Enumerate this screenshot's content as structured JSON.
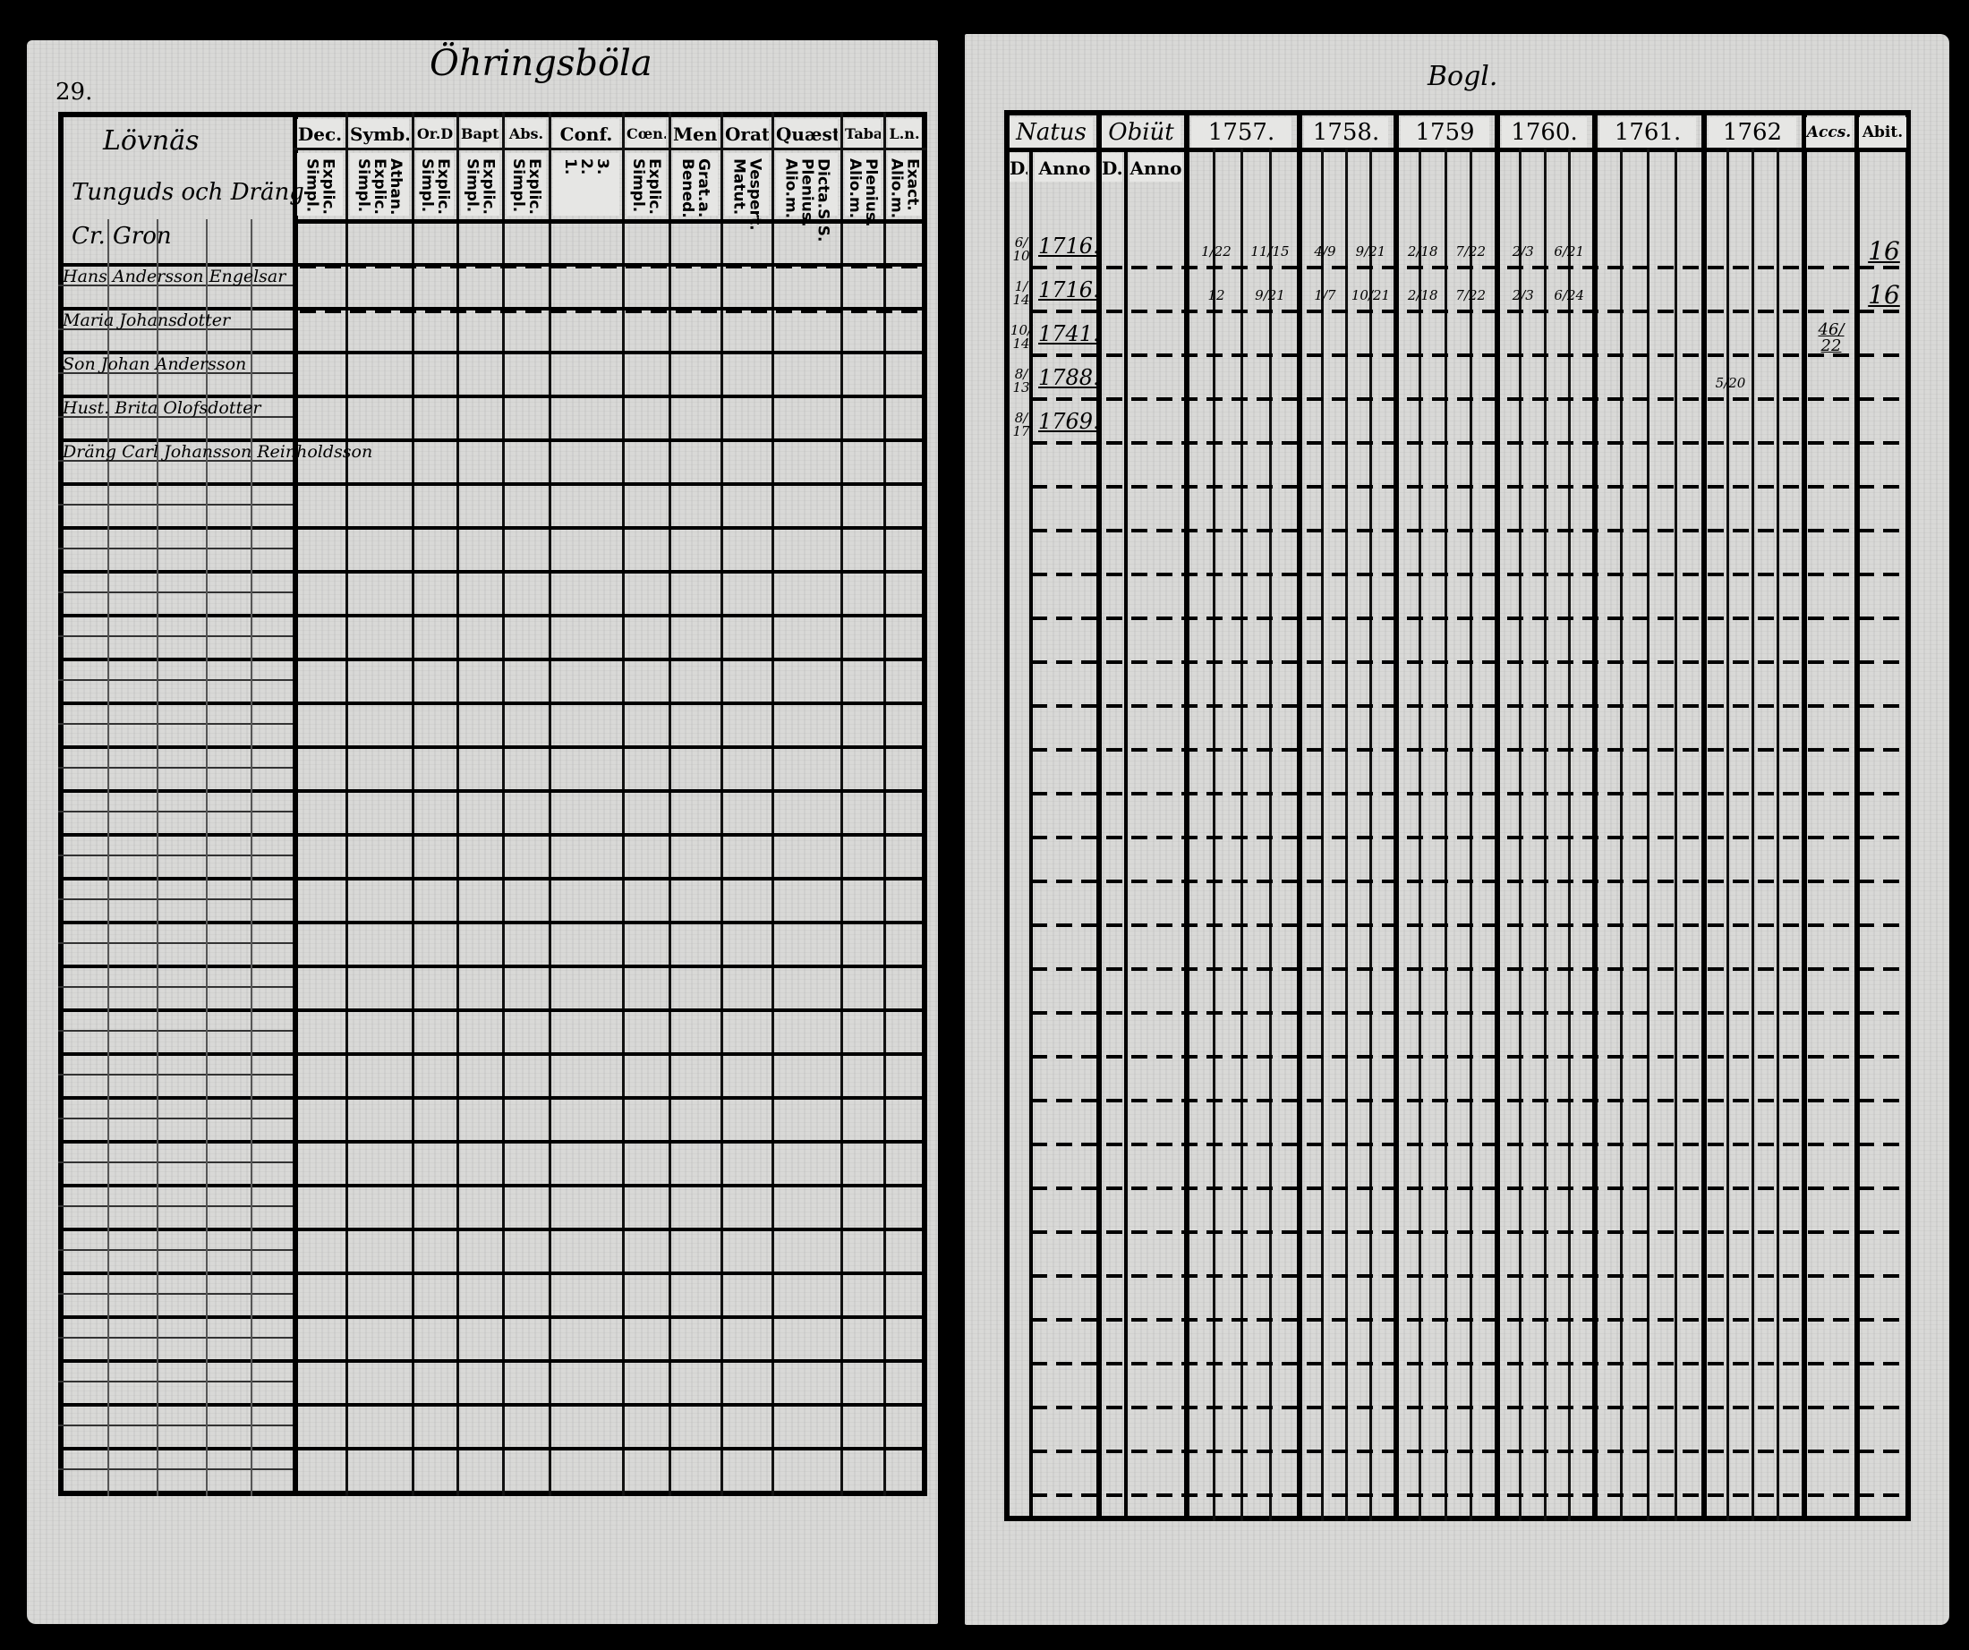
{
  "left_page": {
    "page_number": "29.",
    "title": "Öhringsböla",
    "name_column_heading": "Lövnäs",
    "name_entries": [
      "Tunguds och Dräng",
      "Cr. Gron",
      "Hans Andersson Engelsar",
      "Maria Johansdotter",
      "Son Johan Andersson",
      "Hust. Brita Olofsdotter",
      "Dräng Carl Johansson Reinholdsson"
    ],
    "columns": [
      {
        "top": "Dec.",
        "sub": "Explic.\nSimpl."
      },
      {
        "top": "Symb.",
        "sub": "Athan.\nExplic.\nSimpl."
      },
      {
        "top": "Or.D",
        "sub": "Explic.\nSimpl."
      },
      {
        "top": "Bapt.",
        "sub": "Explic.\nSimpl."
      },
      {
        "top": "Abs.",
        "sub": "Explic.\nSimpl."
      },
      {
        "top": "Conf.",
        "sub": "3.\n2.\n1."
      },
      {
        "top": "Cœn.D",
        "sub": "Explic.\nSimpl."
      },
      {
        "top": "Mens.",
        "sub": "Grat.a.\nBened."
      },
      {
        "top": "Orat.",
        "sub": "Vespert.\nMatut."
      },
      {
        "top": "Quæst.",
        "sub": "Dicta.S.S.\nPlenius.\nAlio.m."
      },
      {
        "top": "Taba",
        "sub": "Plenius.\nAlio.m."
      },
      {
        "top": "L.n.",
        "sub": "Exact.\nAlio.m."
      }
    ]
  },
  "right_page": {
    "title": "Bogl.",
    "columns": {
      "natus": "Natus",
      "obiit": "Obiüt",
      "natus_sub": [
        "D.",
        "Anno"
      ],
      "obiit_sub": [
        "D.",
        "Anno"
      ],
      "years": [
        "1757.",
        "1758.",
        "1759",
        "1760.",
        "1761.",
        "1762"
      ],
      "accessit": "Accs.",
      "abiit": "Abit."
    },
    "rows": [
      {
        "day": "6/10",
        "anno": "1716.",
        "years": [
          [
            "1/22",
            "11/15"
          ],
          [
            "4/9",
            "9/21"
          ],
          [
            "2/18",
            "7/22"
          ],
          [
            "2/3",
            "6/21"
          ],
          [],
          []
        ],
        "accessit": "",
        "abiit": "16"
      },
      {
        "day": "1/14",
        "anno": "1716.",
        "years": [
          [
            "12",
            "9/21"
          ],
          [
            "1/7",
            "10/21"
          ],
          [
            "2/18",
            "7/22"
          ],
          [
            "2/3",
            "6/24"
          ],
          [],
          []
        ],
        "accessit": "",
        "abiit": "16"
      },
      {
        "day": "10/14",
        "anno": "1741.",
        "years": [
          [],
          [],
          [],
          [],
          [],
          []
        ],
        "accessit": "46/22",
        "abiit": ""
      },
      {
        "day": "8/13",
        "anno": "1788.",
        "years": [
          [],
          [],
          [],
          [],
          [],
          [
            "5/20"
          ]
        ],
        "accessit": "",
        "abiit": ""
      },
      {
        "day": "8/17",
        "anno": "1769.",
        "years": [
          [],
          [],
          [],
          [],
          [],
          []
        ],
        "accessit": "",
        "abiit": ""
      }
    ]
  },
  "colors": {
    "paper": "#d9d9d7",
    "ink": "#000000",
    "background": "#000000"
  }
}
